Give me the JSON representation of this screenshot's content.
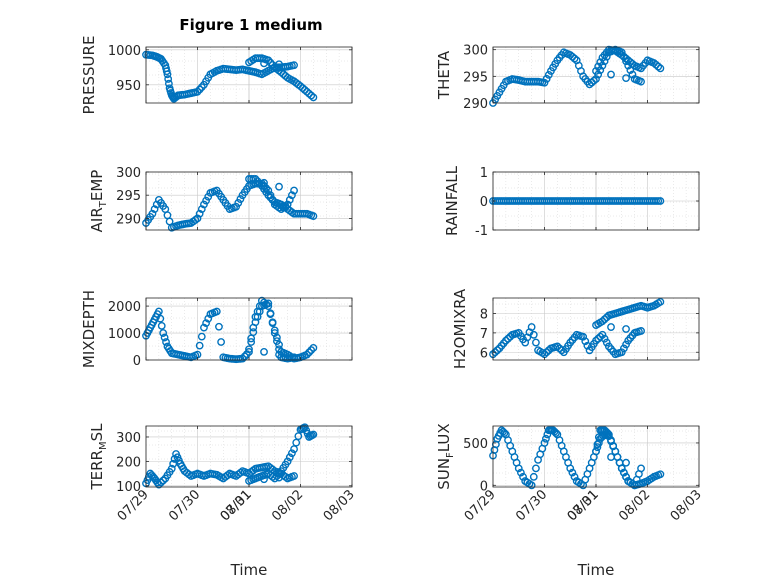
{
  "figure": {
    "title": "Figure 1 medium",
    "xlabel": "Time",
    "x_ticks": [
      "07/29",
      "07/30",
      "07/31",
      "08/01",
      "08/02",
      "08/03"
    ]
  },
  "chart_data": [
    {
      "type": "scatter",
      "ylabel": "PRESSURE",
      "ylim": [
        924,
        1004
      ],
      "yticks": [
        950,
        1000
      ],
      "xlim": [
        "07/29",
        "08/03"
      ],
      "grid": true,
      "x": [
        "07/29 00:00",
        "07/29 03:00",
        "07/29 05:00",
        "07/29 07:00",
        "07/29 09:00",
        "07/29 10:00",
        "07/29 11:00",
        "07/29 12:00",
        "07/29 13:00",
        "07/29 15:00",
        "07/29 18:00",
        "07/29 21:00",
        "07/30 00:00",
        "07/30 03:00",
        "07/30 06:00",
        "07/30 09:00",
        "07/30 12:00",
        "07/30 15:00",
        "07/30 18:00",
        "07/30 21:00",
        "07/31 00:00",
        "07/31 03:00",
        "07/31 06:00",
        "07/31 09:00",
        "07/31 12:00",
        "07/31 15:00",
        "07/31 18:00",
        "07/31 21:00",
        "08/01 00:00",
        "08/01 03:00",
        "08/01 06:00",
        "08/01 09:00",
        "08/01 12:00",
        "08/01 15:00",
        "08/01 18:00",
        "08/01 21:00",
        "08/02 00:00",
        "08/02 03:00",
        "08/02 06:00"
      ],
      "y": [
        993,
        992,
        990,
        987,
        978,
        965,
        945,
        935,
        930,
        935,
        936,
        938,
        940,
        950,
        965,
        970,
        973,
        972,
        971,
        972,
        970,
        968,
        965,
        970,
        975,
        975,
        976,
        978,
        982,
        988,
        988,
        985,
        975,
        968,
        960,
        955,
        948,
        940,
        932
      ]
    },
    {
      "type": "scatter",
      "ylabel": "THETA",
      "ylim": [
        290,
        300.5
      ],
      "yticks": [
        290,
        295,
        300
      ],
      "xlim": [
        "07/29",
        "08/03"
      ],
      "grid": true,
      "x": [
        "07/29 00:00",
        "07/29 03:00",
        "07/29 06:00",
        "07/29 09:00",
        "07/29 12:00",
        "07/29 15:00",
        "07/29 18:00",
        "07/29 21:00",
        "07/30 00:00",
        "07/30 03:00",
        "07/30 06:00",
        "07/30 09:00",
        "07/30 12:00",
        "07/30 15:00",
        "07/30 18:00",
        "07/30 21:00",
        "07/31 00:00",
        "07/31 03:00",
        "07/31 06:00",
        "07/31 09:00",
        "07/31 12:00",
        "07/31 15:00",
        "07/31 18:00",
        "07/31 21:00",
        "08/01 00:00",
        "08/01 03:00",
        "08/01 06:00",
        "08/01 09:00",
        "08/01 12:00",
        "08/01 15:00",
        "08/01 18:00",
        "08/01 21:00",
        "08/02 00:00",
        "08/02 03:00",
        "08/02 06:00"
      ],
      "y": [
        290,
        292,
        294,
        294.5,
        294.3,
        294,
        294,
        294,
        293.8,
        296,
        298,
        299.5,
        299,
        298,
        295,
        293.5,
        294.5,
        297,
        299.5,
        300,
        299.5,
        297,
        294.5,
        294,
        296,
        298.5,
        300,
        299.8,
        299,
        298,
        297,
        296.5,
        298,
        297.5,
        296.5
      ]
    },
    {
      "type": "scatter",
      "ylabel": "AIR_TEMP",
      "ylim": [
        287.5,
        300
      ],
      "yticks": [
        290,
        295,
        300
      ],
      "xlim": [
        "07/29",
        "08/03"
      ],
      "grid": true,
      "x": [
        "07/29 00:00",
        "07/29 03:00",
        "07/29 06:00",
        "07/29 09:00",
        "07/29 12:00",
        "07/29 15:00",
        "07/29 18:00",
        "07/29 21:00",
        "07/30 00:00",
        "07/30 03:00",
        "07/30 06:00",
        "07/30 09:00",
        "07/30 12:00",
        "07/30 15:00",
        "07/30 18:00",
        "07/30 21:00",
        "07/31 00:00",
        "07/31 03:00",
        "07/31 06:00",
        "07/31 09:00",
        "07/31 12:00",
        "07/31 15:00",
        "07/31 18:00",
        "07/31 21:00",
        "08/01 00:00",
        "08/01 03:00",
        "08/01 06:00",
        "08/01 09:00",
        "08/01 12:00",
        "08/01 15:00",
        "08/01 18:00",
        "08/01 21:00",
        "08/02 00:00",
        "08/02 03:00",
        "08/02 06:00"
      ],
      "y": [
        289,
        291,
        294,
        292,
        288,
        288.5,
        288.8,
        289,
        290,
        293,
        295.5,
        296,
        294,
        292,
        292.5,
        295,
        297,
        297.5,
        297.5,
        296,
        293,
        292,
        293,
        296,
        298.5,
        298.5,
        297,
        295,
        293.5,
        293,
        292,
        291,
        291,
        291,
        290.5
      ]
    },
    {
      "type": "scatter",
      "ylabel": "RAINFALL",
      "ylim": [
        -1,
        1
      ],
      "yticks": [
        -1,
        0,
        1
      ],
      "xlim": [
        "07/29",
        "08/03"
      ],
      "grid": true,
      "x_start": "07/29 00:00",
      "x_end": "08/02 06:00",
      "y_constant": 0
    },
    {
      "type": "scatter",
      "ylabel": "MIXDEPTH",
      "ylim": [
        0,
        2300
      ],
      "yticks": [
        0,
        1000,
        2000
      ],
      "xlim": [
        "07/29",
        "08/03"
      ],
      "grid": true,
      "x": [
        "07/29 00:00",
        "07/29 02:00",
        "07/29 04:00",
        "07/29 06:00",
        "07/29 08:00",
        "07/29 10:00",
        "07/29 12:00",
        "07/29 15:00",
        "07/29 18:00",
        "07/29 21:00",
        "07/30 00:00",
        "07/30 03:00",
        "07/30 06:00",
        "07/30 09:00",
        "07/30 12:00",
        "07/30 15:00",
        "07/30 18:00",
        "07/30 21:00",
        "07/31 00:00",
        "07/31 03:00",
        "07/31 06:00",
        "07/31 09:00",
        "07/31 12:00",
        "07/31 15:00",
        "07/31 18:00",
        "07/31 21:00",
        "08/01 00:00",
        "08/01 03:00",
        "08/01 06:00",
        "08/01 09:00",
        "08/01 12:00",
        "08/01 15:00",
        "08/01 18:00",
        "08/01 21:00",
        "08/02 00:00",
        "08/02 03:00",
        "08/02 06:00"
      ],
      "y": [
        900,
        1200,
        1500,
        1800,
        1000,
        500,
        250,
        200,
        150,
        100,
        200,
        1200,
        1700,
        1800,
        100,
        50,
        30,
        50,
        300,
        1400,
        2000,
        2100,
        1000,
        100,
        50,
        100,
        400,
        1600,
        2200,
        2000,
        1100,
        300,
        200,
        50,
        100,
        200,
        450
      ]
    },
    {
      "type": "scatter",
      "ylabel": "H2OMIXRA",
      "ylim": [
        5.6,
        8.8
      ],
      "yticks": [
        6,
        7,
        8
      ],
      "xlim": [
        "07/29",
        "08/03"
      ],
      "grid": true,
      "x": [
        "07/29 00:00",
        "07/29 03:00",
        "07/29 06:00",
        "07/29 09:00",
        "07/29 12:00",
        "07/29 15:00",
        "07/29 18:00",
        "07/29 21:00",
        "07/30 00:00",
        "07/30 03:00",
        "07/30 06:00",
        "07/30 09:00",
        "07/30 12:00",
        "07/30 15:00",
        "07/30 18:00",
        "07/30 21:00",
        "07/31 00:00",
        "07/31 03:00",
        "07/31 06:00",
        "07/31 09:00",
        "07/31 12:00",
        "07/31 15:00",
        "07/31 18:00",
        "07/31 21:00",
        "08/01 00:00",
        "08/01 03:00",
        "08/01 06:00",
        "08/01 09:00",
        "08/01 12:00",
        "08/01 15:00",
        "08/01 18:00",
        "08/01 21:00",
        "08/02 00:00",
        "08/02 03:00",
        "08/02 06:00"
      ],
      "y": [
        5.9,
        6.2,
        6.6,
        6.9,
        7.0,
        6.5,
        7.3,
        6.1,
        5.9,
        6.2,
        6.3,
        6.0,
        6.5,
        6.9,
        6.8,
        6.1,
        6.6,
        6.9,
        6.3,
        5.9,
        6.0,
        6.6,
        7.0,
        7.1,
        7.4,
        7.6,
        7.9,
        8.0,
        8.1,
        8.2,
        8.3,
        8.4,
        8.3,
        8.4,
        8.6
      ]
    },
    {
      "type": "scatter",
      "ylabel": "TERR_MSL",
      "ylim": [
        95,
        345
      ],
      "yticks": [
        100,
        200,
        300
      ],
      "xlim": [
        "07/29",
        "08/03"
      ],
      "grid": true,
      "x": [
        "07/29 00:00",
        "07/29 02:00",
        "07/29 04:00",
        "07/29 06:00",
        "07/29 09:00",
        "07/29 12:00",
        "07/29 14:00",
        "07/29 16:00",
        "07/29 18:00",
        "07/29 21:00",
        "07/30 00:00",
        "07/30 03:00",
        "07/30 06:00",
        "07/30 09:00",
        "07/30 12:00",
        "07/30 15:00",
        "07/30 18:00",
        "07/30 21:00",
        "07/31 00:00",
        "07/31 03:00",
        "07/31 06:00",
        "07/31 09:00",
        "07/31 12:00",
        "07/31 15:00",
        "07/31 18:00",
        "07/31 21:00",
        "08/01 00:00",
        "08/01 03:00",
        "08/01 06:00",
        "08/01 09:00",
        "08/01 12:00",
        "08/01 15:00",
        "08/01 18:00",
        "08/01 21:00",
        "08/02 00:00",
        "08/02 02:00",
        "08/02 04:00",
        "08/02 06:00"
      ],
      "y": [
        110,
        150,
        130,
        105,
        130,
        170,
        230,
        190,
        160,
        140,
        150,
        140,
        150,
        145,
        130,
        150,
        140,
        160,
        150,
        170,
        175,
        180,
        160,
        150,
        130,
        140,
        120,
        130,
        140,
        150,
        130,
        160,
        200,
        250,
        330,
        340,
        300,
        310
      ]
    },
    {
      "type": "scatter",
      "ylabel": "SUN_FLUX",
      "ylim": [
        -20,
        700
      ],
      "yticks": [
        0,
        500
      ],
      "xlim": [
        "07/29",
        "08/03"
      ],
      "grid": true,
      "x": [
        "07/29 00:00",
        "07/29 02:00",
        "07/29 04:00",
        "07/29 06:00",
        "07/29 09:00",
        "07/29 12:00",
        "07/29 15:00",
        "07/29 18:00",
        "07/29 21:00",
        "07/30 00:00",
        "07/30 02:00",
        "07/30 04:00",
        "07/30 06:00",
        "07/30 09:00",
        "07/30 12:00",
        "07/30 15:00",
        "07/30 18:00",
        "07/30 21:00",
        "07/31 00:00",
        "07/31 02:00",
        "07/31 04:00",
        "07/31 06:00",
        "07/31 09:00",
        "07/31 12:00",
        "07/31 15:00",
        "07/31 18:00",
        "07/31 21:00",
        "08/01 00:00",
        "08/01 02:00",
        "08/01 04:00",
        "08/01 06:00",
        "08/01 09:00",
        "08/01 12:00",
        "08/01 15:00",
        "08/01 18:00",
        "08/01 21:00",
        "08/02 00:00",
        "08/02 03:00",
        "08/02 06:00"
      ],
      "y": [
        350,
        550,
        650,
        600,
        400,
        200,
        50,
        0,
        300,
        500,
        650,
        650,
        600,
        400,
        200,
        50,
        0,
        200,
        400,
        650,
        650,
        600,
        400,
        200,
        50,
        0,
        200,
        400,
        550,
        600,
        580,
        400,
        200,
        50,
        0,
        20,
        50,
        100,
        130
      ]
    }
  ]
}
